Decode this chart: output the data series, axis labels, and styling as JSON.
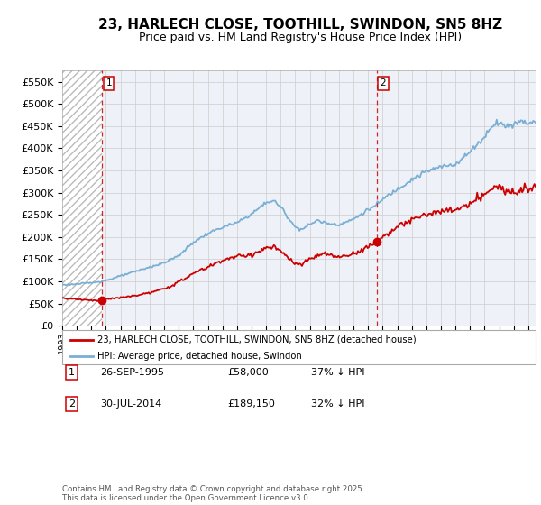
{
  "title": "23, HARLECH CLOSE, TOOTHILL, SWINDON, SN5 8HZ",
  "subtitle": "Price paid vs. HM Land Registry's House Price Index (HPI)",
  "ylim": [
    0,
    575000
  ],
  "yticks": [
    0,
    50000,
    100000,
    150000,
    200000,
    250000,
    300000,
    350000,
    400000,
    450000,
    500000,
    550000
  ],
  "legend_entry1": "23, HARLECH CLOSE, TOOTHILL, SWINDON, SN5 8HZ (detached house)",
  "legend_entry2": "HPI: Average price, detached house, Swindon",
  "sale1_label": "1",
  "sale1_date": "26-SEP-1995",
  "sale1_price": "£58,000",
  "sale1_hpi": "37% ↓ HPI",
  "sale2_label": "2",
  "sale2_date": "30-JUL-2014",
  "sale2_price": "£189,150",
  "sale2_hpi": "32% ↓ HPI",
  "footer": "Contains HM Land Registry data © Crown copyright and database right 2025.\nThis data is licensed under the Open Government Licence v3.0.",
  "house_color": "#cc0000",
  "hpi_color": "#7aafd4",
  "dashed_line_color": "#cc0000",
  "grid_color": "#cccccc",
  "bg_chart": "#eef2f8",
  "title_fontsize": 11,
  "subtitle_fontsize": 9
}
